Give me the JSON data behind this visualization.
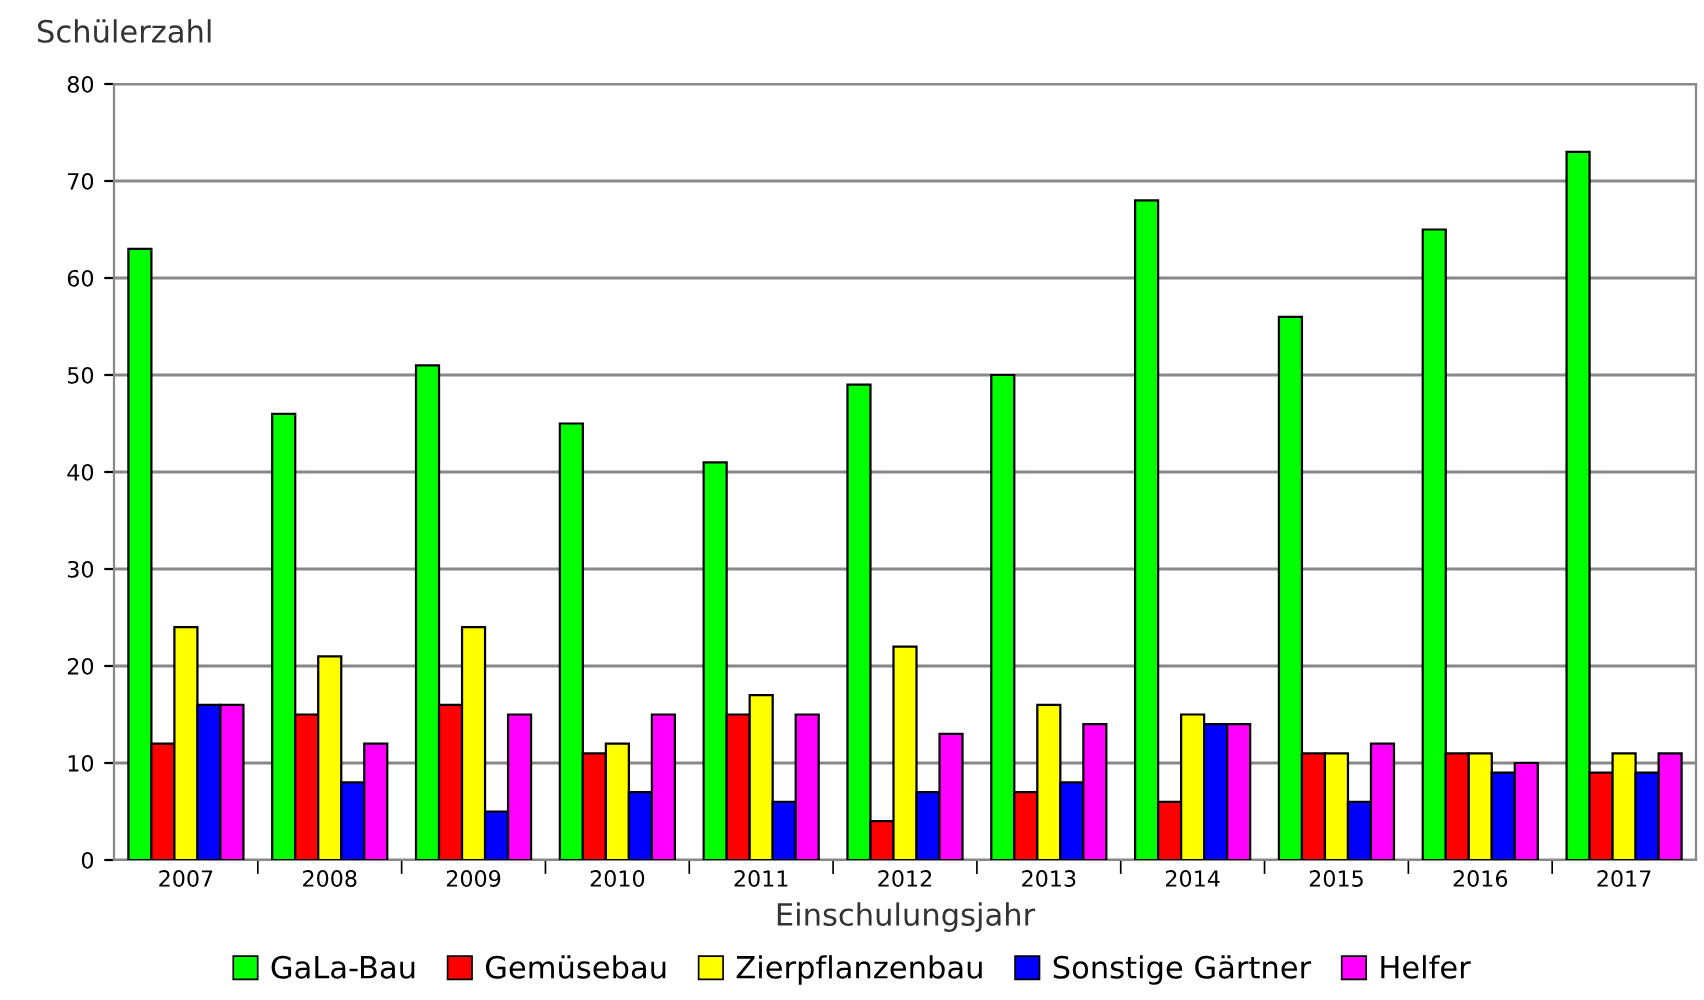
{
  "chart_data": {
    "type": "bar",
    "ylabel": "Schülerzahl",
    "xlabel": "Einschulungsjahr",
    "categories": [
      "2007",
      "2008",
      "2009",
      "2010",
      "2011",
      "2012",
      "2013",
      "2014",
      "2015",
      "2016",
      "2017"
    ],
    "series": [
      {
        "name": "GaLa-Bau",
        "color": "#00ff00",
        "values": [
          63,
          46,
          51,
          45,
          41,
          49,
          50,
          68,
          56,
          65,
          73
        ]
      },
      {
        "name": "Gemüsebau",
        "color": "#ff0000",
        "values": [
          12,
          15,
          16,
          11,
          15,
          4,
          7,
          6,
          11,
          11,
          9
        ]
      },
      {
        "name": "Zierpflanzenbau",
        "color": "#ffff00",
        "values": [
          24,
          21,
          24,
          12,
          17,
          22,
          16,
          15,
          11,
          11,
          11
        ]
      },
      {
        "name": "Sonstige Gärtner",
        "color": "#0000ff",
        "values": [
          16,
          8,
          5,
          7,
          6,
          7,
          8,
          14,
          6,
          9,
          9
        ]
      },
      {
        "name": "Helfer",
        "color": "#ff00ff",
        "values": [
          16,
          12,
          15,
          15,
          15,
          13,
          14,
          14,
          12,
          10,
          11
        ]
      }
    ],
    "ylim": [
      0,
      80
    ],
    "yticks": [
      0,
      10,
      20,
      30,
      40,
      50,
      60,
      70,
      80
    ],
    "grid": "y",
    "legend": "bottom"
  }
}
